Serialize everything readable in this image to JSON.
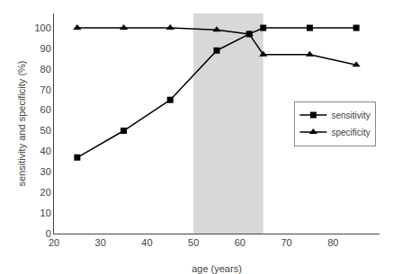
{
  "chart_data": {
    "type": "line",
    "x": [
      25,
      35,
      45,
      55,
      62,
      65,
      75,
      85
    ],
    "series": [
      {
        "name": "sensitivity",
        "color": "#000000",
        "marker": "square",
        "line_style": "solid",
        "values": [
          37,
          50,
          65,
          89,
          97,
          100,
          100,
          100
        ]
      },
      {
        "name": "specificity",
        "color": "#000000",
        "marker": "triangle",
        "line_style": "solid",
        "values": [
          100,
          100,
          100,
          99,
          97,
          87,
          87,
          82
        ]
      }
    ],
    "shaded_region": {
      "xmin": 50,
      "xmax": 65,
      "color": "#d8d8d8"
    },
    "x_label": "age (years)",
    "y_label": "sensitivity and specificity (%)",
    "xlim": [
      20,
      90
    ],
    "ylim": [
      0,
      107
    ],
    "xticks": [
      20,
      30,
      40,
      50,
      60,
      70,
      80
    ],
    "yticks": [
      0,
      10,
      20,
      30,
      40,
      50,
      60,
      70,
      80,
      90,
      100
    ],
    "grid": false,
    "legend": "right"
  }
}
